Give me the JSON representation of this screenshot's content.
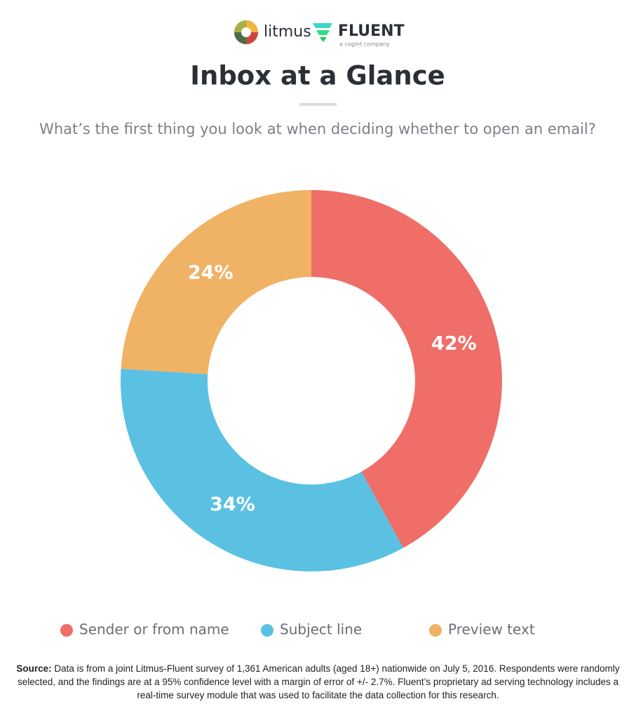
{
  "header": {
    "brand1": "litmus",
    "brand2": "FLUENT",
    "brand2_tagline": "a cogint company"
  },
  "chart_data": {
    "type": "donut",
    "title": "Inbox at a Glance",
    "subtitle": "What’s the first thing you look at when deciding whether to open an email?",
    "categories": [
      "Sender or from name",
      "Subject line",
      "Preview text"
    ],
    "values": [
      42,
      34,
      24
    ],
    "value_labels": [
      "42%",
      "34%",
      "24%"
    ],
    "colors": [
      "#ef6e68",
      "#5bc1e3",
      "#f0b264"
    ],
    "source_label": "Source:",
    "source_text": "Data is from a joint Litmus-Fluent survey of 1,361 American adults (aged 18+) nationwide on July 5, 2016. Respondents were randomly selected, and the findings are at a 95% confidence level with a margin of error of +/- 2.7%. Fluent’s proprietary ad serving technology includes a real-time survey module that was used to facilitate the data collection for this research."
  }
}
